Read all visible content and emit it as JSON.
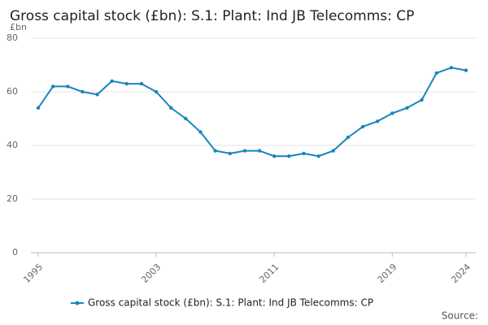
{
  "chart_data": {
    "type": "line",
    "title": "Gross capital stock (£bn): S.1: Plant: Ind JB Telecomms: CP",
    "y_label": "£bn",
    "source": "Source:",
    "x": [
      1995,
      1996,
      1997,
      1998,
      1999,
      2000,
      2001,
      2002,
      2003,
      2004,
      2005,
      2006,
      2007,
      2008,
      2009,
      2010,
      2011,
      2012,
      2013,
      2014,
      2015,
      2016,
      2017,
      2018,
      2019,
      2020,
      2021,
      2022,
      2023,
      2024
    ],
    "series": [
      {
        "name": "Gross capital stock (£bn): S.1: Plant: Ind JB Telecomms: CP",
        "color": "#1a84bd",
        "values": [
          54,
          62,
          62,
          60,
          59,
          64,
          63,
          63,
          60,
          54,
          50,
          45,
          38,
          37,
          38,
          38,
          36,
          36,
          37,
          36,
          38,
          43,
          47,
          49,
          52,
          54,
          57,
          67,
          69,
          68
        ]
      }
    ],
    "xlim": [
      1995,
      2024
    ],
    "xticks": [
      1995,
      2003,
      2011,
      2019,
      2024
    ],
    "ylim": [
      0,
      80
    ],
    "yticks": [
      0,
      20,
      40,
      60,
      80
    ],
    "grid": true
  }
}
